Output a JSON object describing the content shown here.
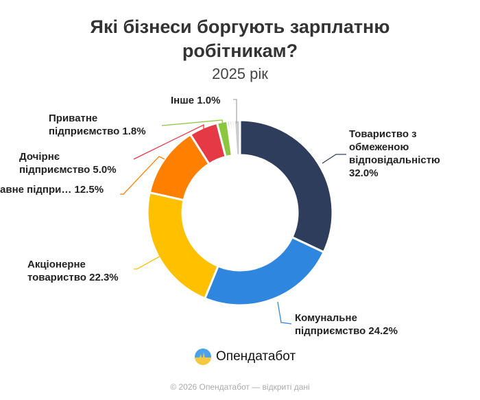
{
  "chart_data": {
    "type": "pie",
    "style": "donut",
    "title_line1": "Які бізнеси боргують зарплатню",
    "title_line2": "робітникам?",
    "subtitle": "2025 рік",
    "slices": [
      {
        "label_line1": "Товариство з",
        "label_line2": "обмеженою",
        "label_line3": "відповідальністю",
        "pct_text": "32.0%",
        "value": 32.0,
        "color": "#2e3d5c"
      },
      {
        "label_line1": "Комунальне",
        "label_line2": "підприємство 24.2%",
        "value": 24.2,
        "color": "#2e86de"
      },
      {
        "label_line1": "Акціонерне",
        "label_line2": "товариство 22.3%",
        "value": 22.3,
        "color": "#ffc000"
      },
      {
        "label_line1": "авне підпри… 12.5%",
        "value": 12.5,
        "color": "#ff8000"
      },
      {
        "label_line1": "Дочірнє",
        "label_line2": "підприємство 5.0%",
        "value": 5.0,
        "color": "#e63946"
      },
      {
        "label_line1": "Приватне",
        "label_line2": "підприємство 1.8%",
        "value": 1.8,
        "color": "#8cc63f"
      },
      {
        "value": 0.4,
        "color": "#6a3d9a"
      },
      {
        "value": 0.4,
        "color": "#888888"
      },
      {
        "value": 0.4,
        "color": "#aaaaaa"
      },
      {
        "label_line1": "Інше 1.0%",
        "value": 1.0,
        "color": "#cccccc"
      }
    ]
  },
  "logo": {
    "name": "Опендатабот"
  },
  "footer": "© 2026 Опендатабот — відкриті дані"
}
